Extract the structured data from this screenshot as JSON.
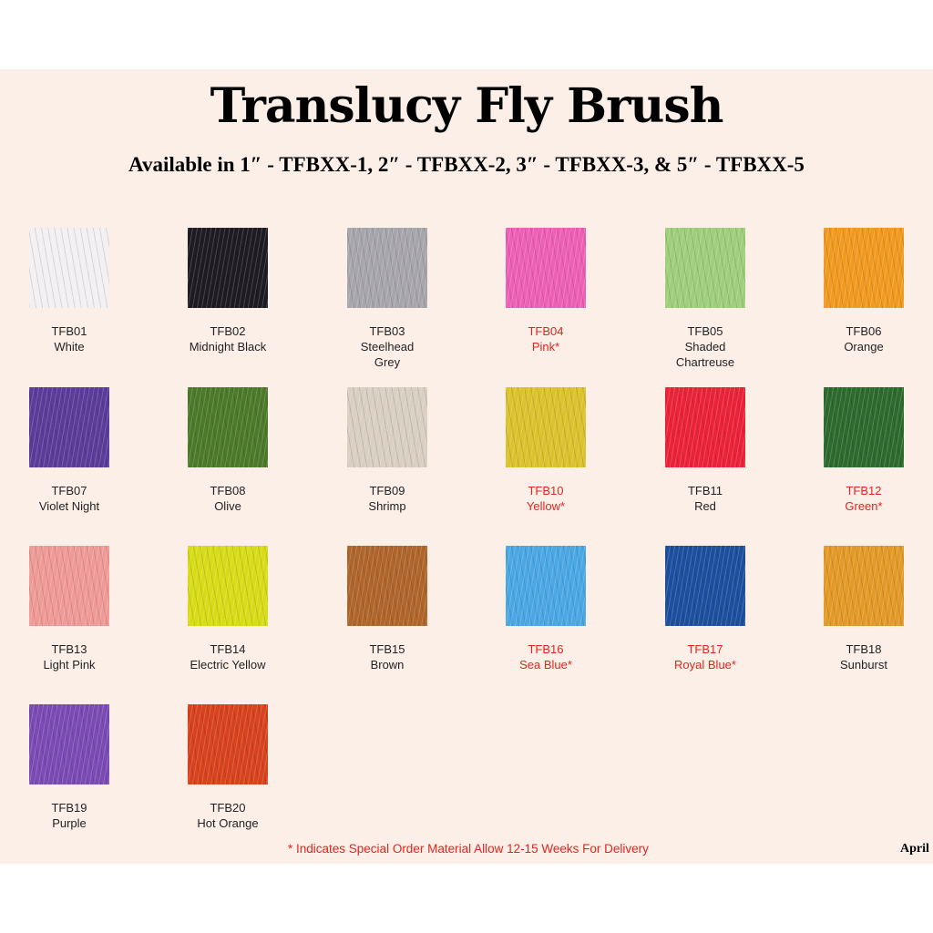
{
  "title": "Translucy Fly Brush",
  "subtitle": "Available in 1″ - TFBXX-1, 2″ - TFBXX-2, 3″ - TFBXX-3, & 5″ - TFBXX-5",
  "items": [
    {
      "code": "TFB01",
      "name": "White",
      "special": false,
      "color": "#f3f0f3"
    },
    {
      "code": "TFB02",
      "name": "Midnight Black",
      "special": false,
      "color": "#1e1c22"
    },
    {
      "code": "TFB03",
      "name": "Steelhead Grey",
      "special": false,
      "color": "#a8a6ad"
    },
    {
      "code": "TFB04",
      "name": "Pink*",
      "special": true,
      "color": "#ee5fb6"
    },
    {
      "code": "TFB05",
      "name": "Shaded Chartreuse",
      "special": false,
      "color": "#9fcf7a"
    },
    {
      "code": "TFB06",
      "name": "Orange",
      "special": false,
      "color": "#f19a20"
    },
    {
      "code": "TFB07",
      "name": "Violet Night",
      "special": false,
      "color": "#5b3c9a"
    },
    {
      "code": "TFB08",
      "name": "Olive",
      "special": false,
      "color": "#4c7a2a"
    },
    {
      "code": "TFB09",
      "name": "Shrimp",
      "special": false,
      "color": "#d9cfc2"
    },
    {
      "code": "TFB10",
      "name": "Yellow*",
      "special": true,
      "color": "#dcc22c"
    },
    {
      "code": "TFB11",
      "name": "Red",
      "special": false,
      "color": "#ec2338"
    },
    {
      "code": "TFB12",
      "name": "Green*",
      "special": true,
      "color": "#2c6a2e"
    },
    {
      "code": "TFB13",
      "name": "Light Pink",
      "special": false,
      "color": "#ef9a96"
    },
    {
      "code": "TFB14",
      "name": "Electric Yellow",
      "special": false,
      "color": "#d8dc16"
    },
    {
      "code": "TFB15",
      "name": "Brown",
      "special": false,
      "color": "#b0652a"
    },
    {
      "code": "TFB16",
      "name": "Sea Blue*",
      "special": true,
      "color": "#4aa8e4"
    },
    {
      "code": "TFB17",
      "name": "Royal Blue*",
      "special": true,
      "color": "#1d4f9e"
    },
    {
      "code": "TFB18",
      "name": "Sunburst",
      "special": false,
      "color": "#e39a26"
    },
    {
      "code": "TFB19",
      "name": "Purple",
      "special": false,
      "color": "#7b4bb5"
    },
    {
      "code": "TFB20",
      "name": "Hot Orange",
      "special": false,
      "color": "#d8421e"
    }
  ],
  "note": "* Indicates Special Order Material Allow 12-15 Weeks For Delivery",
  "date": "April"
}
